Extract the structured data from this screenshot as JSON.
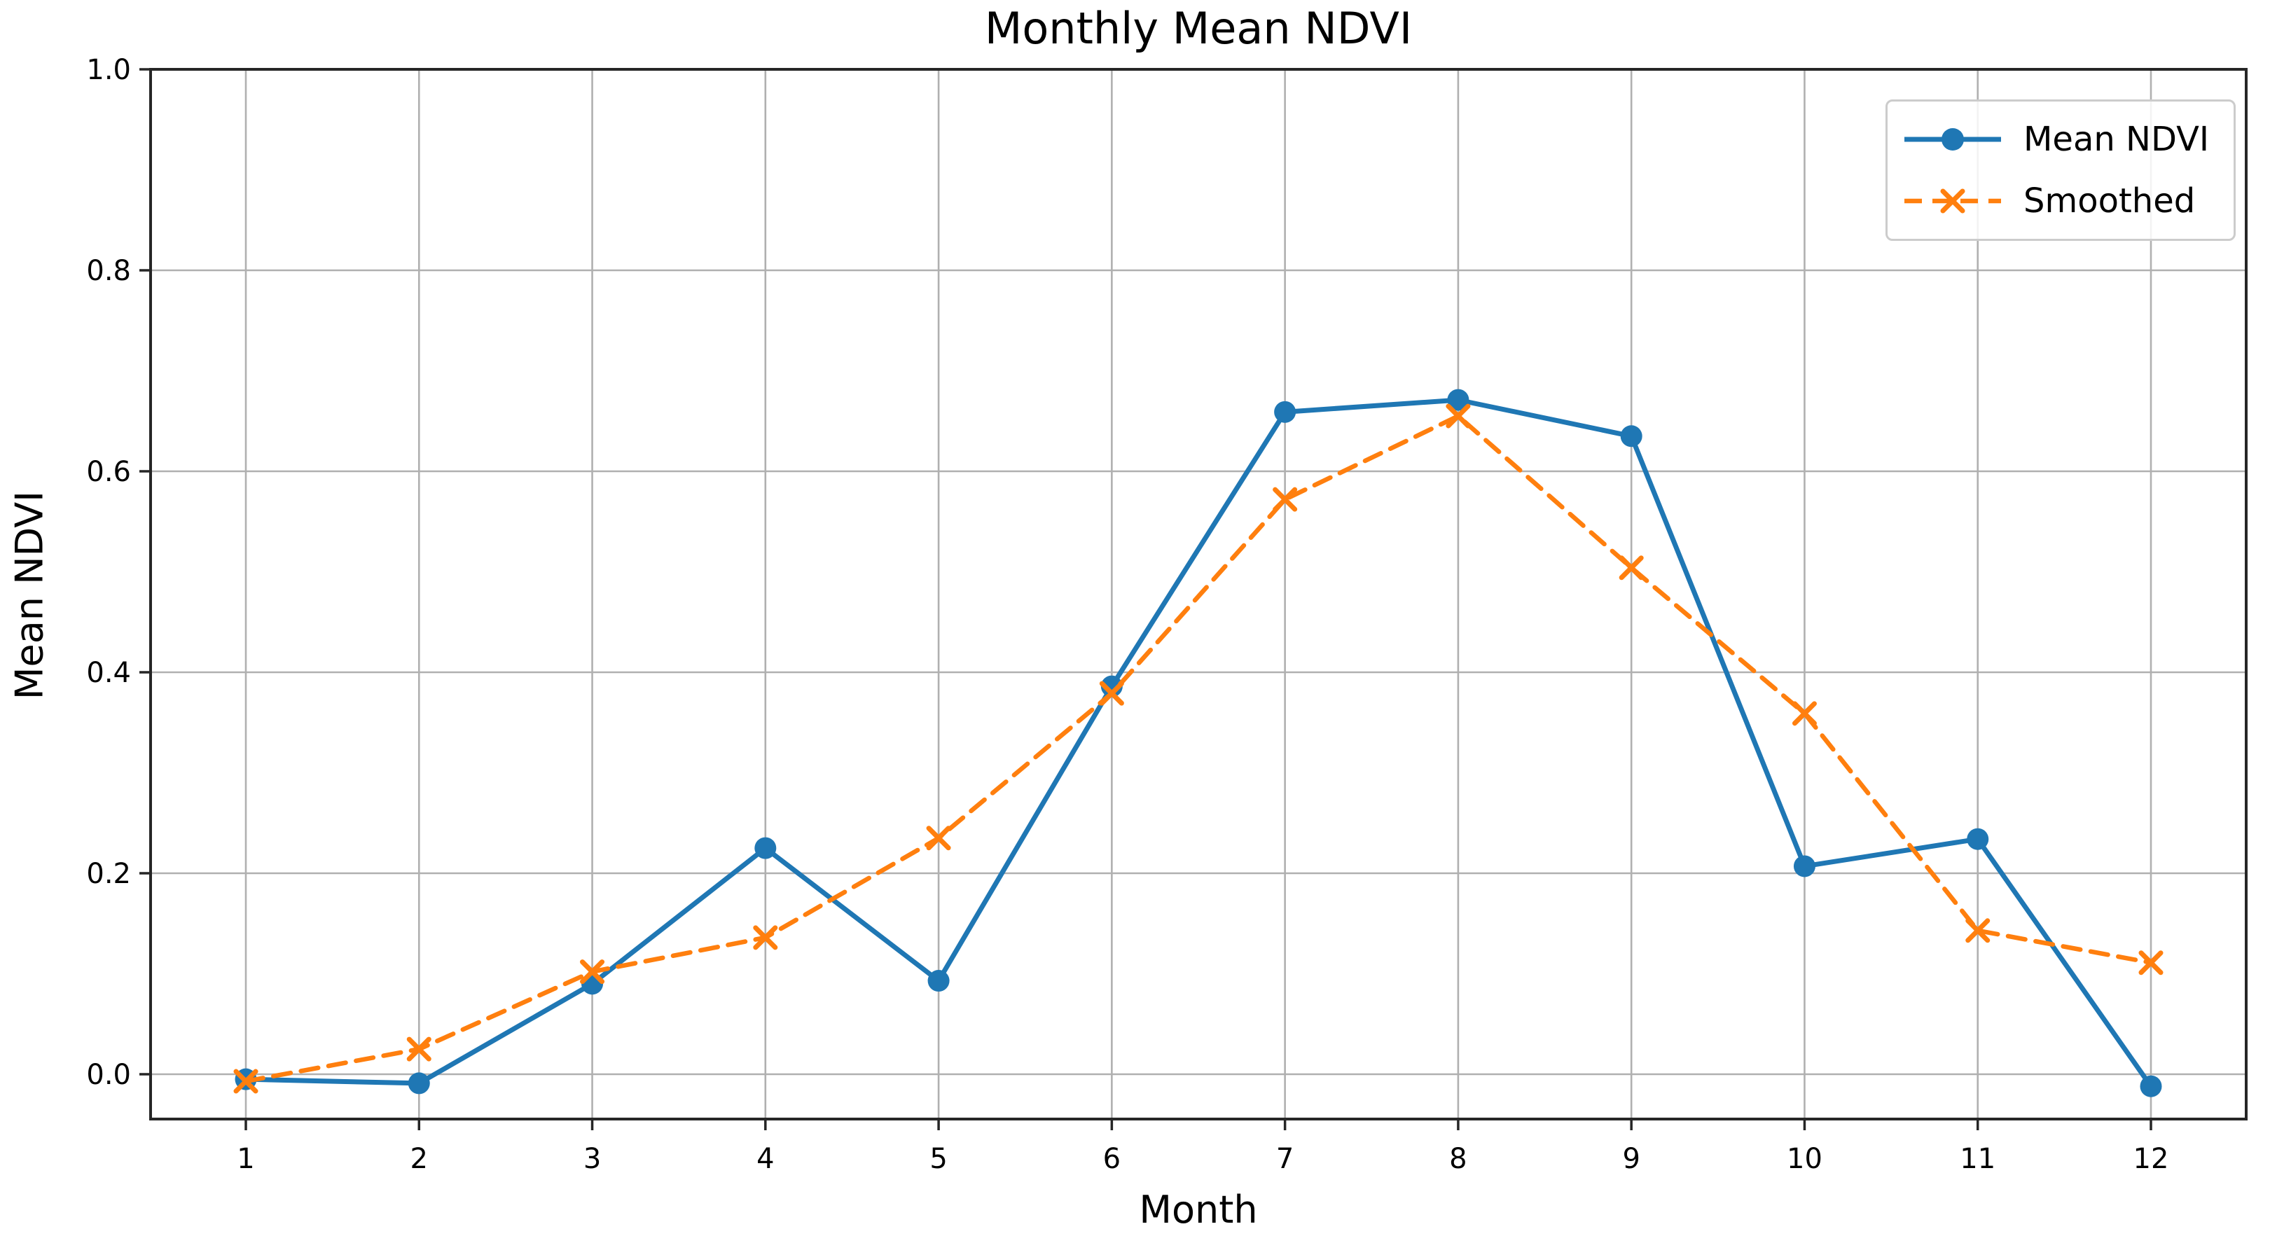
{
  "chart_data": {
    "type": "line",
    "title": "Monthly Mean NDVI",
    "xlabel": "Month",
    "ylabel": "Mean NDVI",
    "x": [
      1,
      2,
      3,
      4,
      5,
      6,
      7,
      8,
      9,
      10,
      11,
      12
    ],
    "x_tick_labels": [
      "1",
      "2",
      "3",
      "4",
      "5",
      "6",
      "7",
      "8",
      "9",
      "10",
      "11",
      "12"
    ],
    "y_tick_values": [
      0.0,
      0.2,
      0.4,
      0.6,
      0.8,
      1.0
    ],
    "y_tick_labels": [
      "0.0",
      "0.2",
      "0.4",
      "0.6",
      "0.8",
      "1.0"
    ],
    "xlim": [
      0.45,
      12.55
    ],
    "ylim": [
      -0.0446,
      1.0
    ],
    "grid": true,
    "legend_position": "upper right",
    "series": [
      {
        "name": "Mean NDVI",
        "color": "#1f77b4",
        "line_style": "solid",
        "marker": "circle",
        "values": [
          -0.005,
          -0.009,
          0.09,
          0.225,
          0.093,
          0.386,
          0.659,
          0.671,
          0.635,
          0.207,
          0.234,
          -0.012
        ]
      },
      {
        "name": "Smoothed",
        "color": "#ff7f0e",
        "line_style": "dashed",
        "marker": "x",
        "values": [
          -0.007,
          0.025,
          0.102,
          0.136,
          0.235,
          0.379,
          0.572,
          0.655,
          0.504,
          0.359,
          0.143,
          0.111
        ]
      }
    ],
    "style_colors": {
      "grid": "#b0b0b0",
      "spine": "#262626",
      "tick_text": "#000000",
      "background": "#ffffff"
    }
  }
}
